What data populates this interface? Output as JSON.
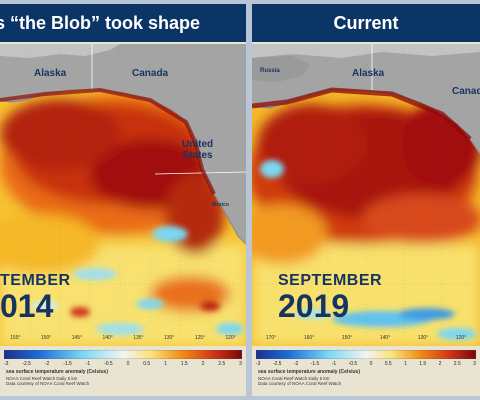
{
  "panels": [
    {
      "title": "s “the Blob” took shape",
      "month": "TEMBER",
      "year": "014",
      "labels": {
        "alaska": "Alaska",
        "canada": "Canada",
        "united_states": "United\nStates",
        "mexico": "Mexico"
      },
      "lon_ticks": [
        "155°",
        "150°",
        "145°",
        "140°",
        "135°",
        "130°",
        "125°",
        "120°"
      ],
      "colorbar_ticks": [
        "-3",
        "-2.5",
        "-2",
        "-1.5",
        "-1",
        "-0.5",
        "0",
        "0.5",
        "1",
        "1.5",
        "2",
        "2.5",
        "3"
      ],
      "caption_title": "sea surface temperature anomaly (Celsius)",
      "caption_lines": [
        "NOAA Coral Reef Watch Daily 5 km",
        "Data courtesy of NOAA Coral Reef Watch"
      ]
    },
    {
      "title": "Current",
      "month": "SEPTEMBER",
      "year": "2019",
      "labels": {
        "alaska": "Alaska",
        "canada": "Canad",
        "russia": "Russia"
      },
      "lon_ticks": [
        "170°",
        "160°",
        "150°",
        "140°",
        "130°",
        "120°"
      ],
      "colorbar_ticks": [
        "-3",
        "-2.5",
        "-2",
        "-1.5",
        "-1",
        "-0.5",
        "0",
        "0.5",
        "1",
        "1.5",
        "2",
        "2.5",
        "3"
      ],
      "caption_title": "sea surface temperature anomaly (Celsius)",
      "caption_lines": [
        "NOAA Coral Reef Watch Daily 5 km",
        "Data courtesy of NOAA Coral Reef Watch"
      ]
    }
  ],
  "colors": {
    "header": "#0b3566",
    "land": "#a4a4a4",
    "label": "#16345f",
    "anomaly_hot": "#a20f0a",
    "anomaly_warm": "#f08a14",
    "anomaly_mild": "#f8e27a",
    "anomaly_cool": "#7ad8f2",
    "anomaly_cold": "#1d6fd8"
  }
}
